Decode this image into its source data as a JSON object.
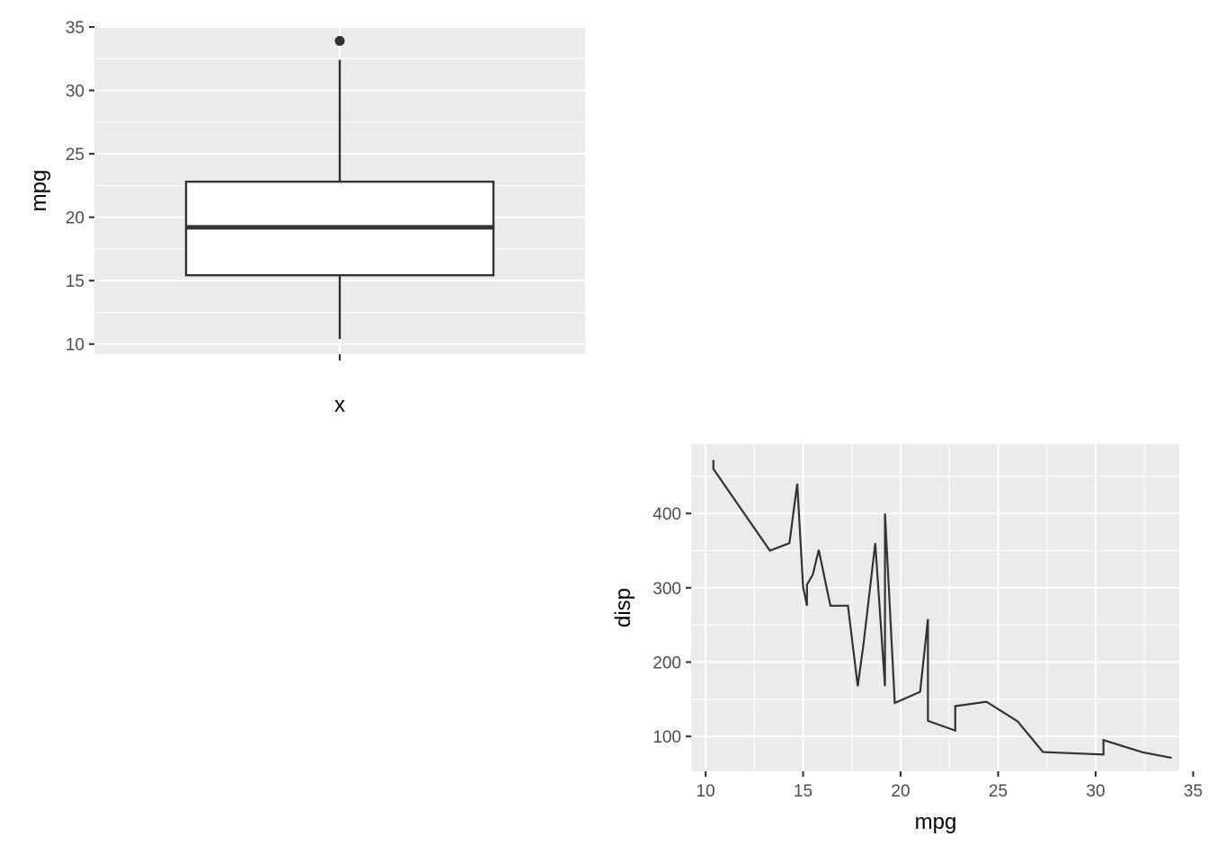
{
  "chart_data": [
    {
      "type": "boxplot",
      "title": "",
      "xlabel": "x",
      "ylabel": "mpg",
      "ylim": [
        9.2,
        35.0
      ],
      "yticks": [
        10,
        15,
        20,
        25,
        30,
        35
      ],
      "x_tick_labels": [
        ""
      ],
      "grid": true,
      "box": {
        "min": 10.4,
        "q1": 15.425,
        "median": 19.2,
        "q3": 22.8,
        "max": 32.4,
        "outliers": [
          33.9
        ]
      }
    },
    {
      "type": "line",
      "title": "",
      "xlabel": "mpg",
      "ylabel": "disp",
      "xlim": [
        10.0,
        35.0
      ],
      "ylim": [
        55,
        475
      ],
      "xticks": [
        10,
        15,
        20,
        25,
        30,
        35
      ],
      "yticks": [
        100,
        200,
        300,
        400
      ],
      "grid": true,
      "series": [
        {
          "x": [
            10.4,
            10.4,
            13.3,
            14.3,
            14.7,
            15.0,
            15.2,
            15.2,
            15.5,
            15.8,
            16.4,
            17.3,
            17.8,
            18.1,
            18.7,
            19.2,
            19.2,
            19.7,
            21.0,
            21.0,
            21.4,
            21.4,
            21.5,
            22.8,
            22.8,
            24.4,
            26.0,
            27.3,
            30.4,
            30.4,
            32.4,
            33.9
          ],
          "y": [
            472.0,
            460.0,
            350.0,
            360.0,
            440.0,
            301.0,
            275.8,
            304.0,
            318.0,
            351.0,
            275.8,
            275.8,
            167.6,
            225.0,
            360.0,
            167.6,
            400.0,
            145.0,
            160.0,
            160.0,
            258.0,
            121.0,
            120.1,
            108.0,
            140.8,
            146.7,
            120.3,
            79.0,
            75.7,
            95.1,
            78.7,
            71.1
          ]
        }
      ]
    }
  ]
}
